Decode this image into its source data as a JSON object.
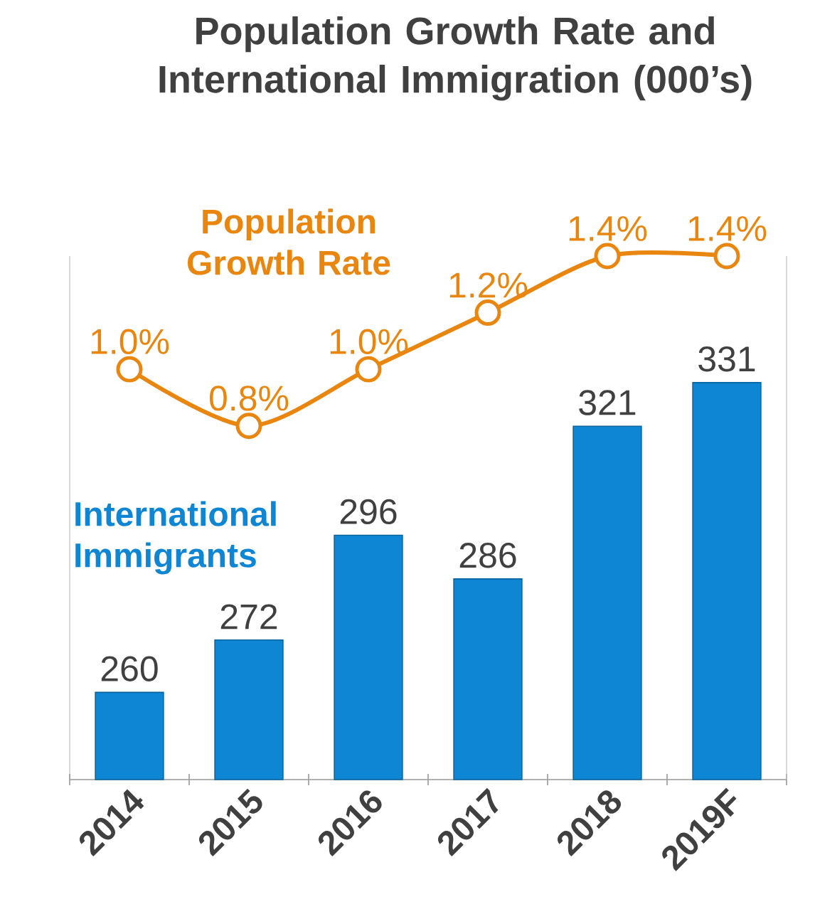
{
  "chart_data": {
    "type": "bar",
    "title": "Population Growth Rate and International Immigration (000’s)",
    "categories": [
      "2014",
      "2015",
      "2016",
      "2017",
      "2018",
      "2019F"
    ],
    "series": [
      {
        "name": "International Immigrants",
        "color": "#0e86d4",
        "values": [
          260,
          272,
          296,
          286,
          321,
          331
        ],
        "value_labels": [
          "260",
          "272",
          "296",
          "286",
          "321",
          "331"
        ]
      },
      {
        "name": "Population Growth Rate",
        "type": "line",
        "axis": "y2",
        "color": "#e8860f",
        "values": [
          1.0,
          0.8,
          1.0,
          1.2,
          1.4,
          1.4
        ],
        "value_labels": [
          "1.0%",
          "0.8%",
          "1.0%",
          "1.2%",
          "1.4%",
          "1.4%"
        ]
      }
    ],
    "ylim": [
      240,
      360
    ],
    "y2lim": [
      -0.45,
      1.4
    ],
    "tick_labels": "x",
    "legend": false,
    "marker": "circle"
  }
}
